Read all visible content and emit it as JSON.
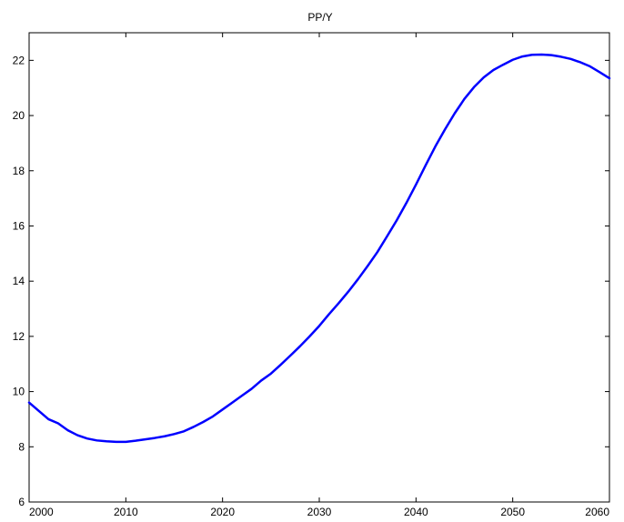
{
  "chart_data": {
    "type": "line",
    "title": "PP/Y",
    "xlabel": "",
    "ylabel": "",
    "xlim": [
      2000,
      2060
    ],
    "ylim": [
      6,
      23
    ],
    "xticks": [
      2000,
      2010,
      2020,
      2030,
      2040,
      2050,
      2060
    ],
    "yticks": [
      6,
      8,
      10,
      12,
      14,
      16,
      18,
      20,
      22
    ],
    "grid": false,
    "legend": "none",
    "series": [
      {
        "color": "#0000ff",
        "x": [
          2000,
          2001,
          2002,
          2003,
          2004,
          2005,
          2006,
          2007,
          2008,
          2009,
          2010,
          2011,
          2012,
          2013,
          2014,
          2015,
          2016,
          2017,
          2018,
          2019,
          2020,
          2021,
          2022,
          2023,
          2024,
          2025,
          2026,
          2027,
          2028,
          2029,
          2030,
          2031,
          2032,
          2033,
          2034,
          2035,
          2036,
          2037,
          2038,
          2039,
          2040,
          2041,
          2042,
          2043,
          2044,
          2045,
          2046,
          2047,
          2048,
          2049,
          2050,
          2051,
          2052,
          2053,
          2054,
          2055,
          2056,
          2057,
          2058,
          2059,
          2060
        ],
        "y": [
          9.6,
          9.3,
          9.0,
          8.85,
          8.6,
          8.42,
          8.3,
          8.23,
          8.2,
          8.18,
          8.18,
          8.22,
          8.27,
          8.32,
          8.38,
          8.46,
          8.56,
          8.72,
          8.9,
          9.1,
          9.35,
          9.6,
          9.85,
          10.1,
          10.4,
          10.65,
          10.97,
          11.3,
          11.64,
          12.0,
          12.38,
          12.8,
          13.2,
          13.62,
          14.07,
          14.55,
          15.05,
          15.62,
          16.2,
          16.83,
          17.5,
          18.2,
          18.88,
          19.5,
          20.08,
          20.6,
          21.03,
          21.38,
          21.65,
          21.84,
          22.02,
          22.14,
          22.2,
          22.21,
          22.19,
          22.13,
          22.05,
          21.93,
          21.78,
          21.57,
          21.35
        ]
      }
    ]
  }
}
